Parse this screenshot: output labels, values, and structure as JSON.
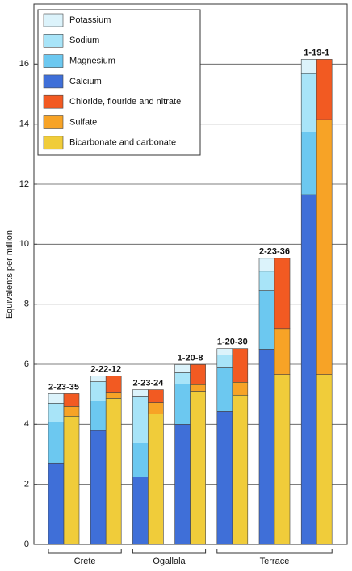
{
  "chart_data": {
    "type": "paired-stacked-bar",
    "y_label": "Equivalents per million",
    "ylim": [
      0,
      18
    ],
    "yticks": [
      0,
      2,
      4,
      6,
      8,
      10,
      12,
      14,
      16
    ],
    "grid": true,
    "groups": [
      {
        "name": "Crete",
        "categories": [
          "2-23-35",
          "2-22-12"
        ]
      },
      {
        "name": "Ogallala",
        "categories": [
          "2-23-24",
          "1-20-8"
        ]
      },
      {
        "name": "Terrace",
        "categories": [
          "1-20-30",
          "2-23-36",
          "1-19-1"
        ]
      }
    ],
    "left_bar_series": [
      {
        "name": "Calcium",
        "color": "#3f6fd8",
        "values": [
          2.71,
          3.79,
          2.25,
          4.0,
          4.43,
          6.5,
          11.65
        ]
      },
      {
        "name": "Magnesium",
        "color": "#6cc8f0",
        "values": [
          1.37,
          0.99,
          1.13,
          1.34,
          1.45,
          1.96,
          2.09
        ]
      },
      {
        "name": "Sodium",
        "color": "#a8e4f8",
        "values": [
          0.62,
          0.64,
          1.56,
          0.38,
          0.43,
          0.64,
          1.94
        ]
      },
      {
        "name": "Potassium",
        "color": "#dcf3fb",
        "values": [
          0.32,
          0.19,
          0.21,
          0.27,
          0.21,
          0.43,
          0.48
        ]
      }
    ],
    "right_bar_series": [
      {
        "name": "Bicarbonate and carbonate",
        "color": "#f0cc3a",
        "values": [
          4.27,
          4.86,
          4.35,
          5.1,
          4.97,
          5.66,
          5.66
        ]
      },
      {
        "name": "Sulfate",
        "color": "#f7a326",
        "values": [
          0.32,
          0.21,
          0.37,
          0.22,
          0.43,
          1.53,
          8.49
        ]
      },
      {
        "name": "Chloride, flouride and nitrate",
        "color": "#f25a22",
        "values": [
          0.43,
          0.54,
          0.43,
          0.67,
          1.12,
          2.34,
          2.01
        ]
      }
    ]
  }
}
